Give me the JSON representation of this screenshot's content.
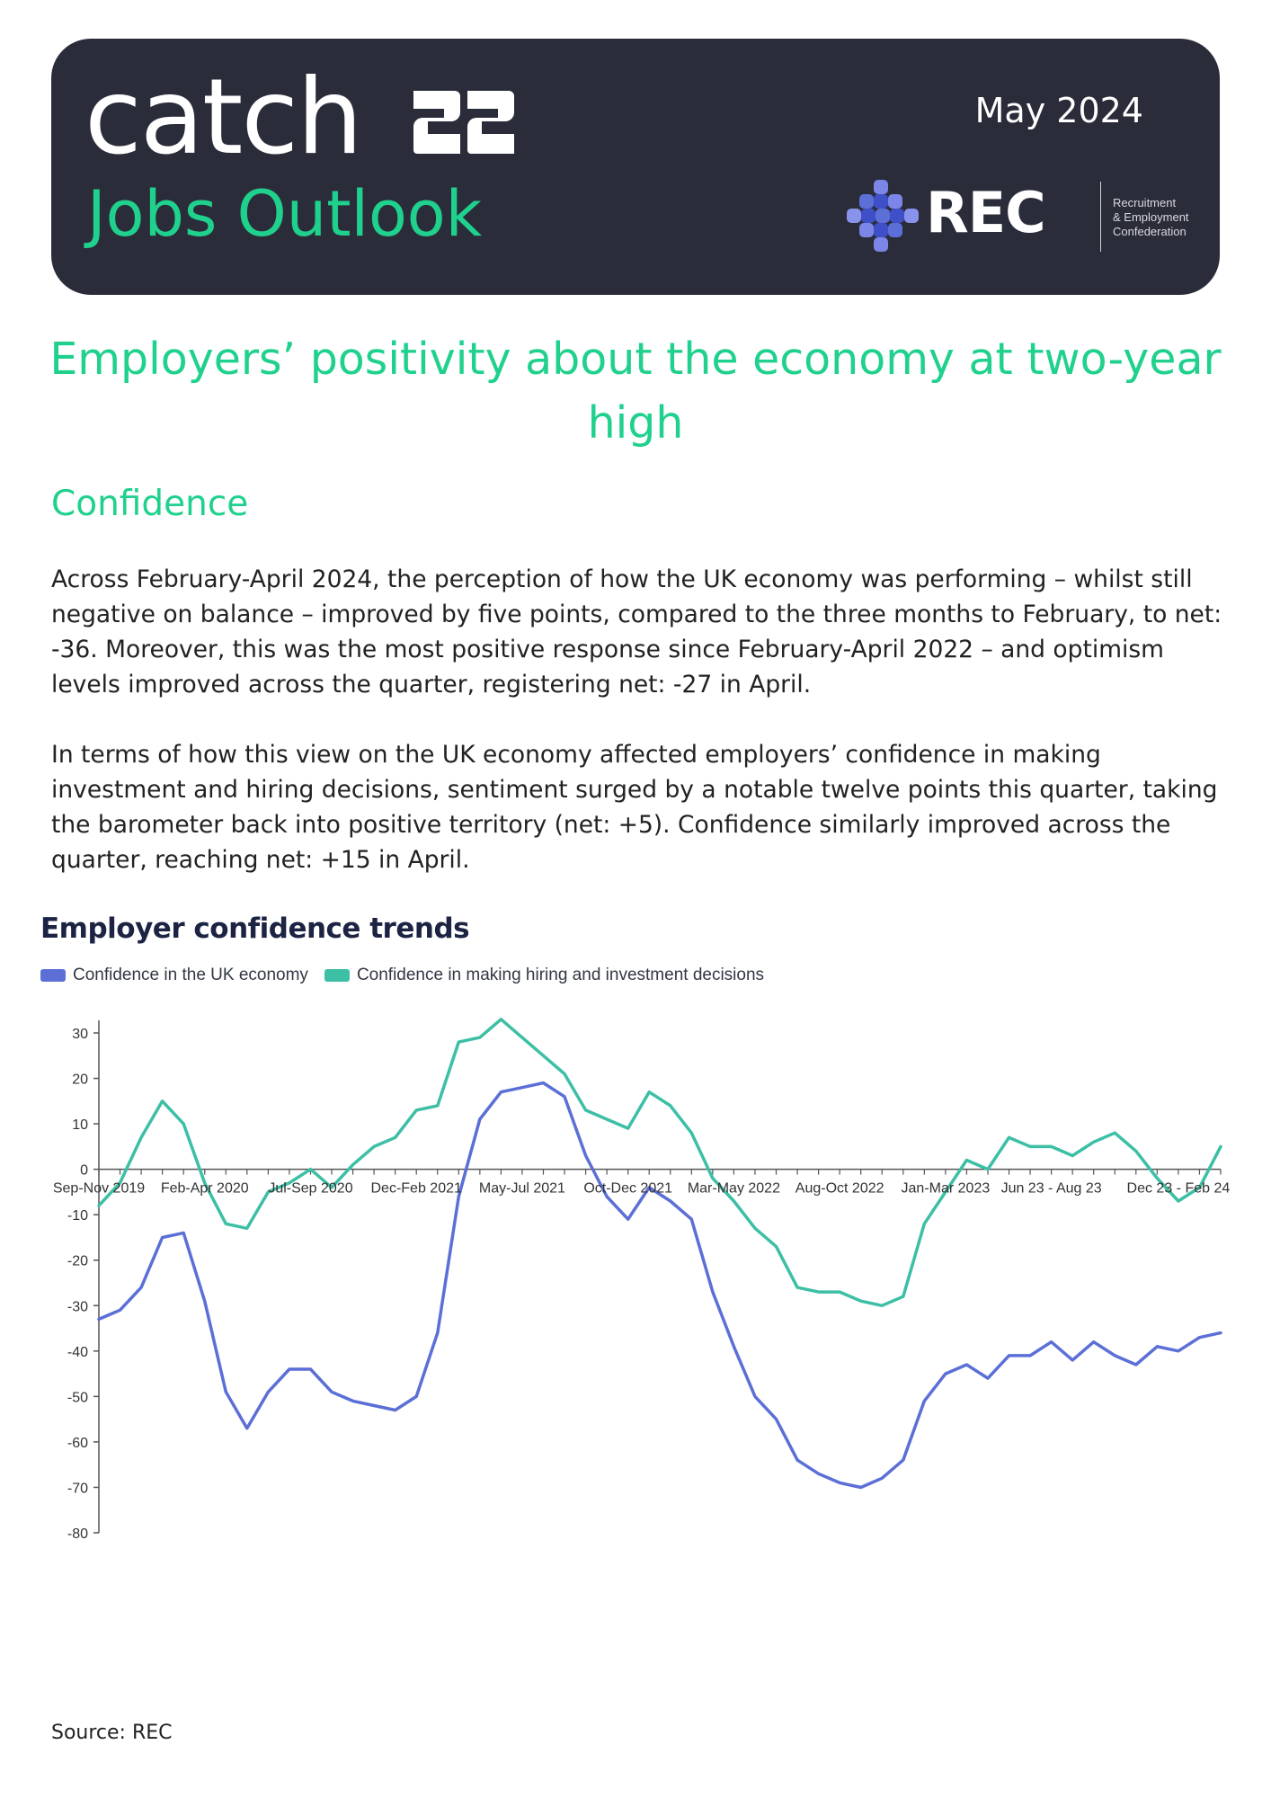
{
  "header": {
    "brand": "catch",
    "brand_mark_label": "22",
    "subtitle": "Jobs Outlook",
    "date": "May 2024",
    "rec_logo_text": "REC",
    "rec_full_name": "Recruitment\n& Employment\nConfederation"
  },
  "headline": "Employers’ positivity about the economy at two-year high",
  "section": {
    "title": "Confidence",
    "paragraphs": [
      "Across February-April 2024, the perception of how the UK economy was performing – whilst still negative on balance – improved by five points, compared to the three months to February, to net: -36. Moreover, this was the most positive response since February-April 2022 – and optimism levels improved across the quarter, registering net: -27 in April.",
      "In terms of how this view on the UK economy affected employers’ confidence in making investment and hiring decisions, sentiment surged by a notable twelve points this quarter, taking the barometer back into positive territory (net: +5). Confidence similarly improved across the quarter, reaching net: +15 in April."
    ]
  },
  "chart_data": {
    "type": "line",
    "title": "Employer confidence trends",
    "ylim": [
      -80,
      30
    ],
    "yticks": [
      30,
      20,
      10,
      0,
      -10,
      -20,
      -30,
      -40,
      -50,
      -60,
      -70,
      -80
    ],
    "x_tick_labels": [
      {
        "index": 0,
        "label": "Sep-Nov 2019"
      },
      {
        "index": 5,
        "label": "Feb-Apr 2020"
      },
      {
        "index": 10,
        "label": "Jul-Sep 2020"
      },
      {
        "index": 15,
        "label": "Dec-Feb 2021"
      },
      {
        "index": 20,
        "label": "May-Jul 2021"
      },
      {
        "index": 25,
        "label": "Oct-Dec 2021"
      },
      {
        "index": 30,
        "label": "Mar-May 2022"
      },
      {
        "index": 35,
        "label": "Aug-Oct 2022"
      },
      {
        "index": 40,
        "label": "Jan-Mar 2023"
      },
      {
        "index": 45,
        "label": "Jun 23 - Aug 23"
      },
      {
        "index": 51,
        "label": "Dec 23 - Feb 24"
      }
    ],
    "legend_position": "top-left",
    "grid": false,
    "series": [
      {
        "name": "Confidence in the UK economy",
        "color": "#5b6fd6",
        "values": [
          -33,
          -31,
          -26,
          -15,
          -14,
          -29,
          -49,
          -57,
          -49,
          -44,
          -44,
          -49,
          -51,
          -52,
          -53,
          -50,
          -36,
          -6,
          11,
          17,
          18,
          19,
          16,
          3,
          -6,
          -11,
          -4,
          -7,
          -11,
          -27,
          -39,
          -50,
          -55,
          -64,
          -67,
          -69,
          -70,
          -68,
          -64,
          -51,
          -45,
          -43,
          -46,
          -41,
          -41,
          -38,
          -42,
          -38,
          -41,
          -43,
          -39,
          -40,
          -37,
          -36
        ]
      },
      {
        "name": "Confidence in making hiring and investment decisions",
        "color": "#3cbfa5",
        "values": [
          -8,
          -3,
          7,
          15,
          10,
          -3,
          -12,
          -13,
          -5,
          -3,
          0,
          -4,
          1,
          5,
          7,
          13,
          14,
          28,
          29,
          33,
          29,
          25,
          21,
          13,
          11,
          9,
          17,
          14,
          8,
          -2,
          -7,
          -13,
          -17,
          -26,
          -27,
          -27,
          -29,
          -30,
          -28,
          -12,
          -5,
          2,
          0,
          7,
          5,
          5,
          3,
          6,
          8,
          4,
          -2,
          -7,
          -4,
          5
        ]
      }
    ]
  },
  "source": "Source: REC"
}
